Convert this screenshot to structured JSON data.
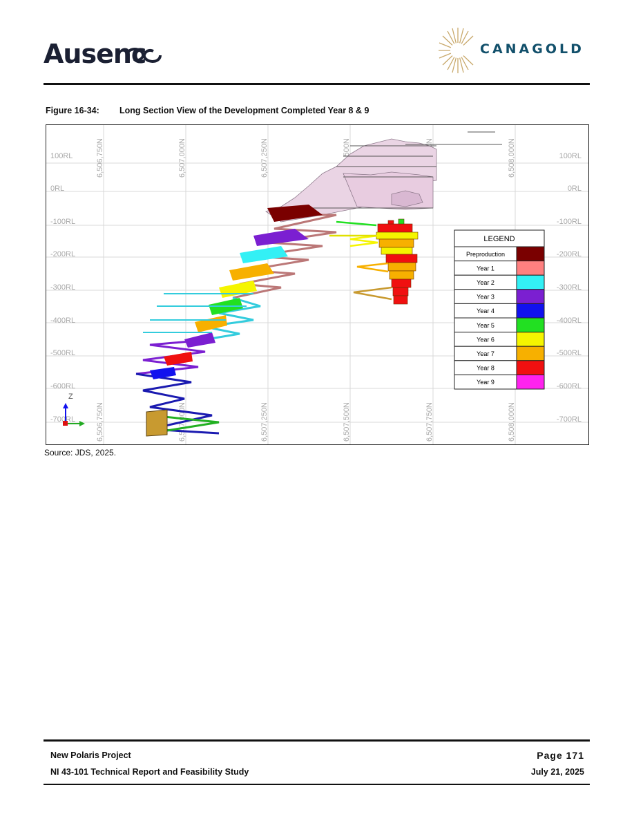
{
  "header": {
    "left_logo_text": "Ausenc",
    "right_logo_text": "CANAGOLD"
  },
  "figure": {
    "caption_number": "Figure 16-34:",
    "caption_title": "Long Section View of the Development Completed Year 8 & 9",
    "source": "Source: JDS, 2025.",
    "rl_labels": [
      "100RL",
      "0RL",
      "-100RL",
      "-200RL",
      "-300RL",
      "-400RL",
      "-500RL",
      "-600RL",
      "-700RL"
    ],
    "northing_labels": [
      "6,506,750N",
      "6,507,000N",
      "6,507,250N",
      "6,507,500N",
      "6,507,750N",
      "6,508,000N"
    ],
    "axis_label_z": "Z",
    "legend": {
      "title": "LEGEND",
      "items": [
        {
          "label": "Preproduction",
          "color": "#7a0000"
        },
        {
          "label": "Year 1",
          "color": "#ff8080"
        },
        {
          "label": "Year 2",
          "color": "#33f0f5"
        },
        {
          "label": "Year 3",
          "color": "#7b1fd1"
        },
        {
          "label": "Year 4",
          "color": "#1111ee"
        },
        {
          "label": "Year 5",
          "color": "#22e022"
        },
        {
          "label": "Year 6",
          "color": "#f5f500"
        },
        {
          "label": "Year 7",
          "color": "#f7b000"
        },
        {
          "label": "Year 8",
          "color": "#f01010"
        },
        {
          "label": "Year 9",
          "color": "#ff22ee"
        }
      ]
    }
  },
  "footer": {
    "project": "New Polaris Project",
    "report": "NI 43-101 Technical Report and Feasibility Study",
    "page": "Page 171",
    "date": "July 21, 2025"
  }
}
